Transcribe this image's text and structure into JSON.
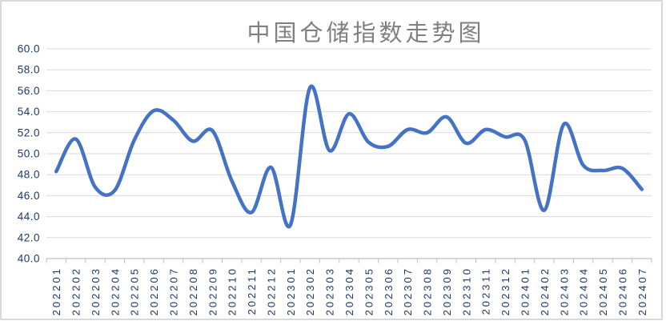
{
  "frame": {
    "background": "#FFFFFF",
    "border_color": "#D9D9D9"
  },
  "chart_data": {
    "type": "line",
    "title": "中国仓储指数走势图",
    "xlabel": "",
    "ylabel": "",
    "legend_position": "none",
    "grid": true,
    "smooth": true,
    "ylim": [
      40.0,
      60.0
    ],
    "y_tick_step": 2.0,
    "y_tick_labels": [
      "60.0",
      "58.0",
      "56.0",
      "54.0",
      "52.0",
      "50.0",
      "48.0",
      "46.0",
      "44.0",
      "42.0",
      "40.0"
    ],
    "categories": [
      "202201",
      "202202",
      "202203",
      "202204",
      "202205",
      "202206",
      "202207",
      "202208",
      "202209",
      "202210",
      "202211",
      "202212",
      "202301",
      "202302",
      "202303",
      "202304",
      "202305",
      "202306",
      "202307",
      "202308",
      "202309",
      "202310",
      "202311",
      "202312",
      "202401",
      "202402",
      "202403",
      "202404",
      "202405",
      "202406",
      "202407"
    ],
    "series": [
      {
        "name": "中国仓储指数",
        "values": [
          48.3,
          51.4,
          46.8,
          46.5,
          51.3,
          54.1,
          53.2,
          51.2,
          52.2,
          47.4,
          44.4,
          48.7,
          43.2,
          56.3,
          50.3,
          53.8,
          51.1,
          50.7,
          52.3,
          52.0,
          53.5,
          51.0,
          52.3,
          51.6,
          51.3,
          44.6,
          52.8,
          48.9,
          48.4,
          48.6,
          46.6
        ]
      }
    ],
    "colors": {
      "line": "#4472C4",
      "gridline": "#D9D9D9",
      "axis_line": "#BFBFBF",
      "tick_label": "#1F3864",
      "title": "#808080",
      "plot_background": "#FFFFFF"
    }
  }
}
